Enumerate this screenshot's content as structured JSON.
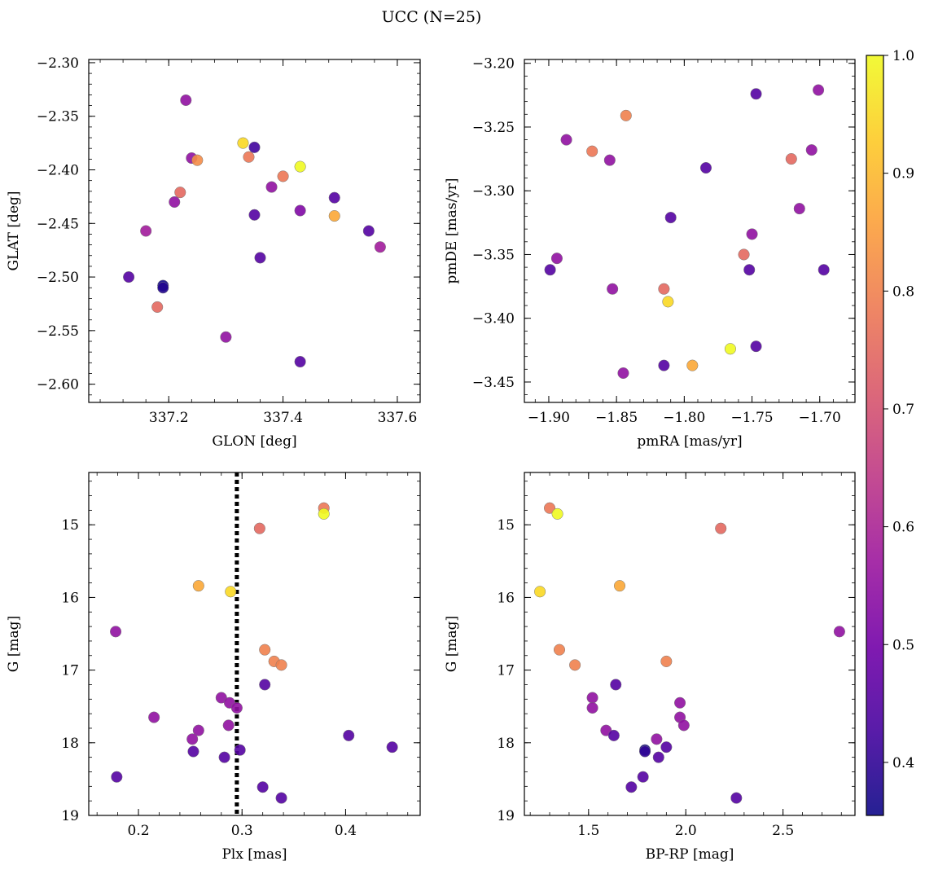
{
  "figure": {
    "title": "UCC (N=25)",
    "colormap": [
      "#0d0887",
      "#46039f",
      "#7201a8",
      "#9c179e",
      "#bd3786",
      "#d8576b",
      "#ed7953",
      "#fb9f3a",
      "#fdca26",
      "#f0f921"
    ],
    "colorbar": {
      "min": 0.355,
      "max": 1.0,
      "ticks": [
        0.4,
        0.5,
        0.6,
        0.7,
        0.8,
        0.9,
        1.0
      ],
      "tick_labels": [
        "0.4",
        "0.5",
        "0.6",
        "0.7",
        "0.8",
        "0.9",
        "1.0"
      ]
    }
  },
  "chart_data": [
    {
      "type": "scatter",
      "id": "glon-glat",
      "xlabel": "GLON [deg]",
      "ylabel": "GLAT [deg]",
      "xlim": [
        337.06,
        337.64
      ],
      "ylim": [
        -2.617,
        -2.297
      ],
      "invert_y": false,
      "xticks": [
        337.2,
        337.4,
        337.6
      ],
      "xtick_labels": [
        "337.2",
        "337.4",
        "337.6"
      ],
      "yticks": [
        -2.3,
        -2.35,
        -2.4,
        -2.45,
        -2.5,
        -2.55,
        -2.6
      ],
      "ytick_labels": [
        "−2.30",
        "−2.35",
        "−2.40",
        "−2.45",
        "−2.50",
        "−2.55",
        "−2.60"
      ],
      "points": [
        {
          "x": 337.23,
          "y": -2.335,
          "c": 0.55
        },
        {
          "x": 337.24,
          "y": -2.389,
          "c": 0.55
        },
        {
          "x": 337.25,
          "y": -2.391,
          "c": 0.82
        },
        {
          "x": 337.33,
          "y": -2.375,
          "c": 0.95
        },
        {
          "x": 337.34,
          "y": -2.388,
          "c": 0.78
        },
        {
          "x": 337.35,
          "y": -2.379,
          "c": 0.42
        },
        {
          "x": 337.43,
          "y": -2.397,
          "c": 1.0
        },
        {
          "x": 337.4,
          "y": -2.406,
          "c": 0.78
        },
        {
          "x": 337.38,
          "y": -2.416,
          "c": 0.55
        },
        {
          "x": 337.22,
          "y": -2.421,
          "c": 0.75
        },
        {
          "x": 337.21,
          "y": -2.43,
          "c": 0.55
        },
        {
          "x": 337.49,
          "y": -2.426,
          "c": 0.45
        },
        {
          "x": 337.43,
          "y": -2.438,
          "c": 0.52
        },
        {
          "x": 337.35,
          "y": -2.442,
          "c": 0.45
        },
        {
          "x": 337.49,
          "y": -2.443,
          "c": 0.87
        },
        {
          "x": 337.16,
          "y": -2.457,
          "c": 0.58
        },
        {
          "x": 337.55,
          "y": -2.457,
          "c": 0.45
        },
        {
          "x": 337.57,
          "y": -2.472,
          "c": 0.58
        },
        {
          "x": 337.36,
          "y": -2.482,
          "c": 0.45
        },
        {
          "x": 337.13,
          "y": -2.5,
          "c": 0.45
        },
        {
          "x": 337.19,
          "y": -2.508,
          "c": 0.36
        },
        {
          "x": 337.19,
          "y": -2.51,
          "c": 0.38
        },
        {
          "x": 337.18,
          "y": -2.528,
          "c": 0.75
        },
        {
          "x": 337.3,
          "y": -2.556,
          "c": 0.55
        },
        {
          "x": 337.43,
          "y": -2.579,
          "c": 0.45
        }
      ]
    },
    {
      "type": "scatter",
      "id": "pmra-pmde",
      "xlabel": "pmRA [mas/yr]",
      "ylabel": "pmDE [mas/yr]",
      "xlim": [
        -1.918,
        -1.674
      ],
      "ylim": [
        -3.466,
        -3.197
      ],
      "invert_y": false,
      "xticks": [
        -1.9,
        -1.85,
        -1.8,
        -1.75,
        -1.7
      ],
      "xtick_labels": [
        "−1.90",
        "−1.85",
        "−1.80",
        "−1.75",
        "−1.70"
      ],
      "yticks": [
        -3.2,
        -3.25,
        -3.3,
        -3.35,
        -3.4,
        -3.45
      ],
      "ytick_labels": [
        "−3.20",
        "−3.25",
        "−3.30",
        "−3.35",
        "−3.40",
        "−3.45"
      ],
      "points": [
        {
          "x": -1.701,
          "y": -3.221,
          "c": 0.55
        },
        {
          "x": -1.747,
          "y": -3.224,
          "c": 0.45
        },
        {
          "x": -1.843,
          "y": -3.241,
          "c": 0.8
        },
        {
          "x": -1.887,
          "y": -3.26,
          "c": 0.55
        },
        {
          "x": -1.868,
          "y": -3.269,
          "c": 0.78
        },
        {
          "x": -1.706,
          "y": -3.268,
          "c": 0.55
        },
        {
          "x": -1.721,
          "y": -3.275,
          "c": 0.75
        },
        {
          "x": -1.855,
          "y": -3.276,
          "c": 0.55
        },
        {
          "x": -1.784,
          "y": -3.282,
          "c": 0.45
        },
        {
          "x": -1.715,
          "y": -3.314,
          "c": 0.55
        },
        {
          "x": -1.81,
          "y": -3.321,
          "c": 0.45
        },
        {
          "x": -1.75,
          "y": -3.334,
          "c": 0.55
        },
        {
          "x": -1.756,
          "y": -3.35,
          "c": 0.75
        },
        {
          "x": -1.894,
          "y": -3.353,
          "c": 0.55
        },
        {
          "x": -1.899,
          "y": -3.362,
          "c": 0.45
        },
        {
          "x": -1.752,
          "y": -3.362,
          "c": 0.45
        },
        {
          "x": -1.697,
          "y": -3.362,
          "c": 0.45
        },
        {
          "x": -1.853,
          "y": -3.377,
          "c": 0.55
        },
        {
          "x": -1.815,
          "y": -3.377,
          "c": 0.75
        },
        {
          "x": -1.812,
          "y": -3.387,
          "c": 0.95
        },
        {
          "x": -1.747,
          "y": -3.422,
          "c": 0.45
        },
        {
          "x": -1.766,
          "y": -3.424,
          "c": 1.0
        },
        {
          "x": -1.815,
          "y": -3.437,
          "c": 0.45
        },
        {
          "x": -1.794,
          "y": -3.437,
          "c": 0.87
        },
        {
          "x": -1.845,
          "y": -3.443,
          "c": 0.55
        }
      ]
    },
    {
      "type": "scatter",
      "id": "plx-g",
      "xlabel": "Plx [mas]",
      "ylabel": "G [mag]",
      "xlim": [
        0.152,
        0.472
      ],
      "ylim": [
        14.28,
        19.0
      ],
      "invert_y": true,
      "vline": {
        "x": 0.295,
        "style": "dotted"
      },
      "xticks": [
        0.2,
        0.3,
        0.4
      ],
      "xtick_labels": [
        "0.2",
        "0.3",
        "0.4"
      ],
      "yticks": [
        15,
        16,
        17,
        18,
        19
      ],
      "ytick_labels": [
        "15",
        "16",
        "17",
        "18",
        "19"
      ],
      "points": [
        {
          "x": 0.379,
          "y": 14.77,
          "c": 0.78
        },
        {
          "x": 0.379,
          "y": 14.85,
          "c": 1.0
        },
        {
          "x": 0.317,
          "y": 15.05,
          "c": 0.75
        },
        {
          "x": 0.258,
          "y": 15.84,
          "c": 0.87
        },
        {
          "x": 0.289,
          "y": 15.92,
          "c": 0.95
        },
        {
          "x": 0.178,
          "y": 16.47,
          "c": 0.55
        },
        {
          "x": 0.322,
          "y": 16.72,
          "c": 0.8
        },
        {
          "x": 0.331,
          "y": 16.88,
          "c": 0.8
        },
        {
          "x": 0.338,
          "y": 16.93,
          "c": 0.8
        },
        {
          "x": 0.322,
          "y": 17.2,
          "c": 0.45
        },
        {
          "x": 0.28,
          "y": 17.38,
          "c": 0.55
        },
        {
          "x": 0.288,
          "y": 17.45,
          "c": 0.55
        },
        {
          "x": 0.295,
          "y": 17.52,
          "c": 0.55
        },
        {
          "x": 0.215,
          "y": 17.65,
          "c": 0.55
        },
        {
          "x": 0.287,
          "y": 17.76,
          "c": 0.55
        },
        {
          "x": 0.258,
          "y": 17.83,
          "c": 0.55
        },
        {
          "x": 0.403,
          "y": 17.9,
          "c": 0.45
        },
        {
          "x": 0.252,
          "y": 17.95,
          "c": 0.55
        },
        {
          "x": 0.445,
          "y": 18.06,
          "c": 0.45
        },
        {
          "x": 0.298,
          "y": 18.1,
          "c": 0.45
        },
        {
          "x": 0.253,
          "y": 18.12,
          "c": 0.45
        },
        {
          "x": 0.283,
          "y": 18.2,
          "c": 0.45
        },
        {
          "x": 0.179,
          "y": 18.47,
          "c": 0.45
        },
        {
          "x": 0.32,
          "y": 18.61,
          "c": 0.45
        },
        {
          "x": 0.338,
          "y": 18.76,
          "c": 0.45
        }
      ]
    },
    {
      "type": "scatter",
      "id": "bprp-g",
      "xlabel": "BP-RP [mag]",
      "ylabel": "G [mag]",
      "xlim": [
        1.17,
        2.87
      ],
      "ylim": [
        14.28,
        19.0
      ],
      "invert_y": true,
      "xticks": [
        1.5,
        2.0,
        2.5
      ],
      "xtick_labels": [
        "1.5",
        "2.0",
        "2.5"
      ],
      "yticks": [
        15,
        16,
        17,
        18,
        19
      ],
      "ytick_labels": [
        "15",
        "16",
        "17",
        "18",
        "19"
      ],
      "points": [
        {
          "x": 1.3,
          "y": 14.77,
          "c": 0.78
        },
        {
          "x": 1.34,
          "y": 14.85,
          "c": 1.0
        },
        {
          "x": 2.18,
          "y": 15.05,
          "c": 0.75
        },
        {
          "x": 1.66,
          "y": 15.84,
          "c": 0.87
        },
        {
          "x": 1.25,
          "y": 15.92,
          "c": 0.95
        },
        {
          "x": 2.79,
          "y": 16.47,
          "c": 0.55
        },
        {
          "x": 1.35,
          "y": 16.72,
          "c": 0.8
        },
        {
          "x": 1.9,
          "y": 16.88,
          "c": 0.8
        },
        {
          "x": 1.43,
          "y": 16.93,
          "c": 0.8
        },
        {
          "x": 1.64,
          "y": 17.2,
          "c": 0.45
        },
        {
          "x": 1.52,
          "y": 17.38,
          "c": 0.55
        },
        {
          "x": 1.97,
          "y": 17.45,
          "c": 0.55
        },
        {
          "x": 1.52,
          "y": 17.52,
          "c": 0.55
        },
        {
          "x": 1.97,
          "y": 17.65,
          "c": 0.55
        },
        {
          "x": 1.99,
          "y": 17.76,
          "c": 0.55
        },
        {
          "x": 1.59,
          "y": 17.83,
          "c": 0.55
        },
        {
          "x": 1.63,
          "y": 17.9,
          "c": 0.45
        },
        {
          "x": 1.85,
          "y": 17.95,
          "c": 0.55
        },
        {
          "x": 1.9,
          "y": 18.06,
          "c": 0.45
        },
        {
          "x": 1.79,
          "y": 18.1,
          "c": 0.36
        },
        {
          "x": 1.79,
          "y": 18.12,
          "c": 0.4
        },
        {
          "x": 1.86,
          "y": 18.2,
          "c": 0.45
        },
        {
          "x": 1.78,
          "y": 18.47,
          "c": 0.45
        },
        {
          "x": 1.72,
          "y": 18.61,
          "c": 0.45
        },
        {
          "x": 2.26,
          "y": 18.76,
          "c": 0.45
        }
      ]
    }
  ]
}
